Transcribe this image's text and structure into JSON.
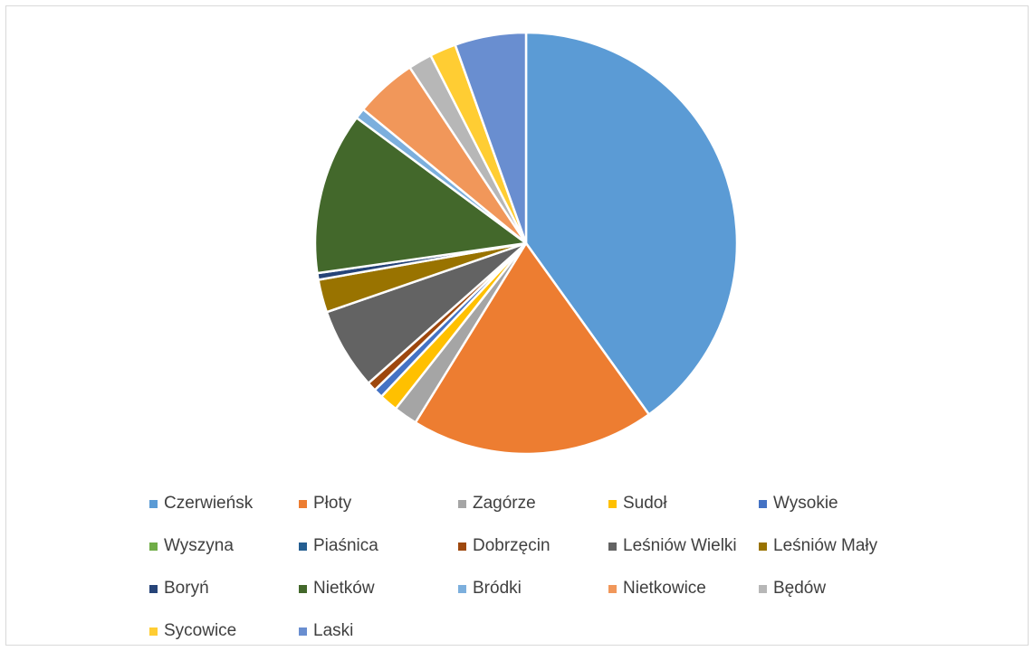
{
  "chart_data": {
    "type": "pie",
    "title": "",
    "start_angle_deg": 0,
    "direction": "clockwise",
    "legend_position": "bottom",
    "slices": [
      {
        "label": "Czerwieńsk",
        "value": 39.7,
        "color": "#5B9BD5"
      },
      {
        "label": "Płoty",
        "value": 18.5,
        "color": "#ED7D31"
      },
      {
        "label": "Zagórze",
        "value": 1.8,
        "color": "#A5A5A5"
      },
      {
        "label": "Sudoł",
        "value": 1.4,
        "color": "#FFC000"
      },
      {
        "label": "Wysokie",
        "value": 0.7,
        "color": "#4472C4"
      },
      {
        "label": "Wyszyna",
        "value": 0.0,
        "color": "#70AD47"
      },
      {
        "label": "Piaśnica",
        "value": 0.0,
        "color": "#255E91"
      },
      {
        "label": "Dobrzęcin",
        "value": 0.7,
        "color": "#9E480E"
      },
      {
        "label": "Leśniów Wielki",
        "value": 6.2,
        "color": "#636363"
      },
      {
        "label": "Leśniów Mały",
        "value": 2.5,
        "color": "#997300"
      },
      {
        "label": "Boryń",
        "value": 0.5,
        "color": "#264478"
      },
      {
        "label": "Nietków",
        "value": 12.3,
        "color": "#43682B"
      },
      {
        "label": "Bródki",
        "value": 0.8,
        "color": "#7CAFDD"
      },
      {
        "label": "Nietkowice",
        "value": 4.7,
        "color": "#F1975A"
      },
      {
        "label": "Będów",
        "value": 1.8,
        "color": "#B7B7B7"
      },
      {
        "label": "Sycowice",
        "value": 2.0,
        "color": "#FFCD33"
      },
      {
        "label": "Laski",
        "value": 5.4,
        "color": "#698ED0"
      }
    ]
  }
}
